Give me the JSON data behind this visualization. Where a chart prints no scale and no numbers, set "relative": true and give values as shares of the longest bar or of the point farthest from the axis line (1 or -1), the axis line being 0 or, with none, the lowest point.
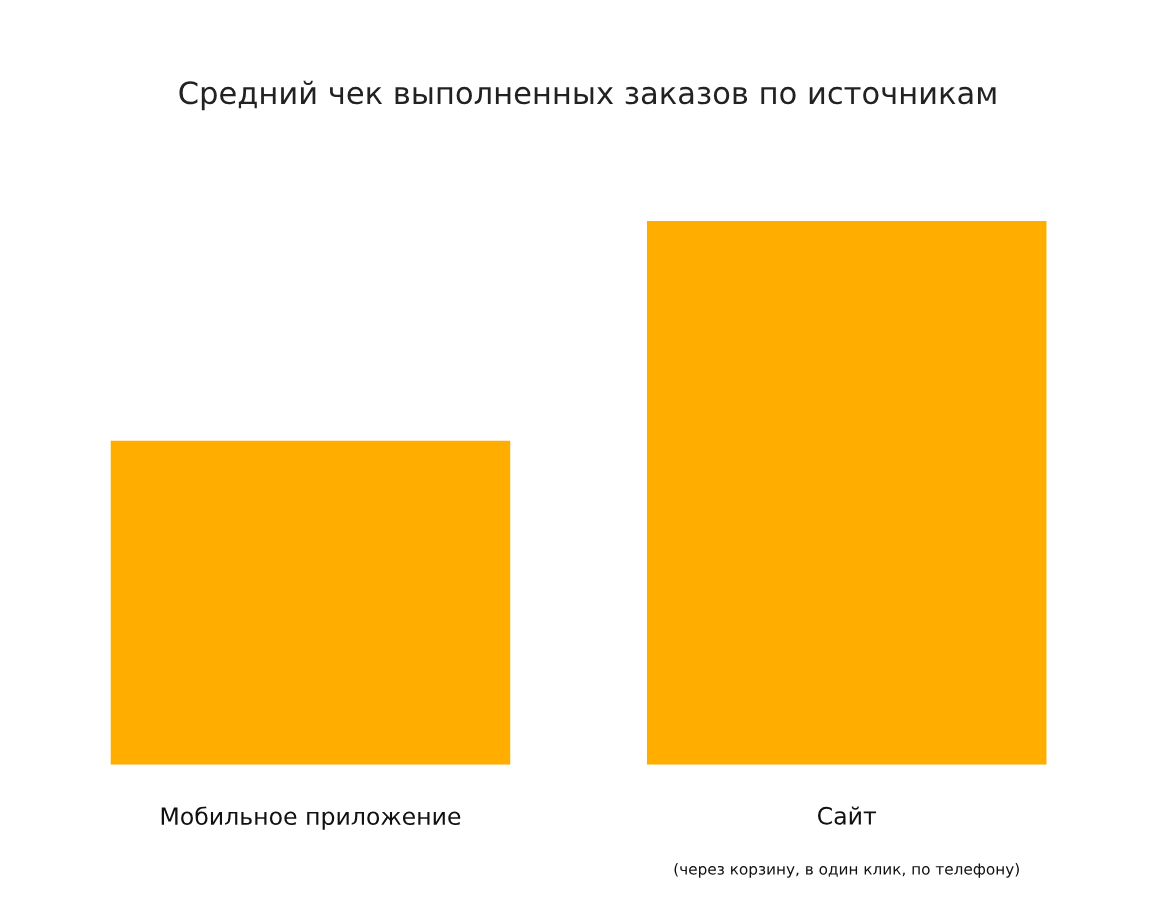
{
  "chart_data": {
    "type": "bar",
    "title": "Средний чек выполненных заказов по источникам",
    "categories": [
      "Мобильное приложение",
      "Сайт"
    ],
    "values": [
      0.596,
      1
    ],
    "color": "#ffae00",
    "relative": true,
    "annotations": [
      "(через корзину, в один клик, по телефону)"
    ]
  }
}
